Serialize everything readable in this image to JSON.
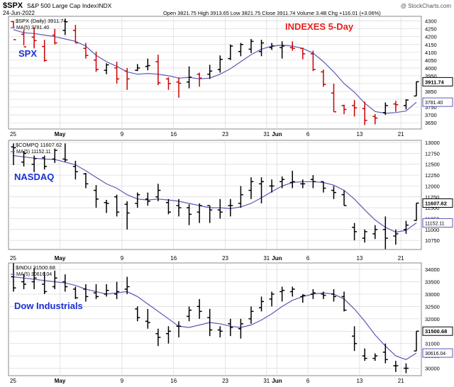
{
  "header": {
    "symbol": "$SPX",
    "name": "S&P 500 Large Cap Index",
    "exchange": "INDX",
    "date": "24-Jun-2022",
    "ohlc_text": "Open 3821.75  High 3913.65  Low 3821.75  Close 3911.74  Volume 3.4B  Chg +116.01 (+3.06%)",
    "watermark": "@ StockCharts.com"
  },
  "colors": {
    "up": "#000000",
    "down": "#cc0000",
    "ma": "#5a5ab8",
    "grid": "#d8d8d8",
    "accent_blue": "#1a2fd6",
    "accent_red": "#e8201b"
  },
  "x_labels": [
    {
      "i": -1,
      "t": "25"
    },
    {
      "i": 4,
      "t": "May",
      "bold": true
    },
    {
      "i": 10,
      "t": "9"
    },
    {
      "i": 15,
      "t": "16"
    },
    {
      "i": 20,
      "t": "23"
    },
    {
      "i": 24,
      "t": "31"
    },
    {
      "i": 25,
      "t": "Jun",
      "bold": true
    },
    {
      "i": 28,
      "t": "6"
    },
    {
      "i": 33,
      "t": "13"
    },
    {
      "i": 37,
      "t": "21"
    }
  ],
  "chart_data": [
    {
      "type": "ohlc",
      "symbol_line": "$SPX (Daily) 3911.74",
      "ma_label": "MA(5) 3781.40",
      "panel_label": "SPX",
      "annotation": "INDEXES 5-Day",
      "ylim": [
        3610,
        4330
      ],
      "yticks": [
        3650,
        3700,
        3750,
        3800,
        3850,
        3900,
        3950,
        4000,
        4050,
        4100,
        4150,
        4200,
        4250,
        4300
      ],
      "last_value": "3911.74",
      "ma_value": "3781.40",
      "last": 3911.74,
      "ma_last": 3781.4,
      "bars": [
        [
          4300,
          4255,
          4296,
          4181
        ],
        [
          4245,
          4145,
          4215,
          4135
        ],
        [
          4260,
          4125,
          4197,
          4175
        ],
        [
          4180,
          4040,
          4137,
          4048
        ],
        [
          4250,
          4150,
          4210,
          4160
        ],
        [
          4315,
          4210,
          4240,
          4295
        ],
        [
          4275,
          4160,
          4240,
          4160
        ],
        [
          4160,
          4060,
          4125,
          4080
        ],
        [
          4105,
          3975,
          4050,
          3990
        ],
        [
          4030,
          3960,
          3985,
          4020
        ],
        [
          4040,
          3900,
          4000,
          3930
        ],
        [
          4000,
          3860,
          3980,
          3930
        ],
        [
          4025,
          3980,
          3985,
          4000
        ],
        [
          4060,
          3985,
          4010,
          4015
        ],
        [
          4085,
          3890,
          4040,
          3905
        ],
        [
          3940,
          3860,
          3930,
          3900
        ],
        [
          3940,
          3810,
          3910,
          3902
        ],
        [
          4010,
          3870,
          3910,
          3941
        ],
        [
          3970,
          3880,
          3960,
          3935
        ],
        [
          4020,
          3930,
          3960,
          3980
        ],
        [
          4080,
          3970,
          3990,
          4055
        ],
        [
          4150,
          4050,
          4060,
          4140
        ],
        [
          4160,
          4075,
          4105,
          4150
        ],
        [
          4185,
          4095,
          4120,
          4170
        ],
        [
          4180,
          4075,
          4105,
          4160
        ],
        [
          4160,
          4115,
          4130,
          4140
        ],
        [
          4170,
          4060,
          4130,
          4140
        ],
        [
          4170,
          4110,
          4130,
          4125
        ],
        [
          4130,
          4055,
          4125,
          4090
        ],
        [
          4110,
          3980,
          4090,
          3990
        ],
        [
          3990,
          3880,
          3975,
          3895
        ],
        [
          3900,
          3720,
          3840,
          3720
        ],
        [
          3765,
          3705,
          3760,
          3735
        ],
        [
          3795,
          3690,
          3760,
          3745
        ],
        [
          3785,
          3635,
          3740,
          3665
        ],
        [
          3705,
          3640,
          3690,
          3680
        ],
        [
          3780,
          3700,
          3715,
          3760
        ],
        [
          3790,
          3720,
          3770,
          3765
        ],
        [
          3800,
          3735,
          3760,
          3795
        ],
        [
          3913,
          3821,
          3821,
          3912
        ]
      ],
      "ma": [
        4245,
        4225,
        4220,
        4210,
        4200,
        4185,
        4170,
        4140,
        4080,
        4040,
        4010,
        3975,
        3960,
        3965,
        3960,
        3950,
        3935,
        3940,
        3930,
        3935,
        3960,
        3995,
        4040,
        4085,
        4120,
        4140,
        4145,
        4140,
        4125,
        4095,
        4040,
        3975,
        3900,
        3845,
        3775,
        3722,
        3710,
        3715,
        3725,
        3781
      ]
    },
    {
      "type": "ohlc",
      "symbol_line": "$COMPQ 11607.62",
      "ma_label": "MA(5) 11152.11",
      "panel_label": "NASDAQ",
      "ylim": [
        10540,
        13050
      ],
      "yticks": [
        10750,
        11000,
        11250,
        11500,
        11750,
        12000,
        12250,
        12500,
        12750,
        13000
      ],
      "last_value": "11607.62",
      "ma_value": "11152.11",
      "last": 11607.62,
      "ma_last": 11152.11,
      "bars": [
        [
          12980,
          12480,
          12900,
          12880
        ],
        [
          12800,
          12450,
          12550,
          12750
        ],
        [
          12700,
          12320,
          12500,
          12630
        ],
        [
          12700,
          12380,
          12650,
          12450
        ],
        [
          12860,
          12530,
          12620,
          12820
        ],
        [
          12980,
          12550,
          12620,
          12600
        ],
        [
          12580,
          12150,
          12450,
          12330
        ],
        [
          12300,
          11950,
          12280,
          12050
        ],
        [
          12020,
          11500,
          11900,
          11700
        ],
        [
          11680,
          11380,
          11620,
          11600
        ],
        [
          11800,
          11300,
          11750,
          11400
        ],
        [
          11650,
          11000,
          11580,
          11380
        ],
        [
          11850,
          11500,
          11600,
          11800
        ],
        [
          11850,
          11550,
          11700,
          11650
        ],
        [
          12050,
          11650,
          11750,
          11900
        ],
        [
          11700,
          11350,
          11620,
          11400
        ],
        [
          11700,
          11300,
          11550,
          11500
        ],
        [
          11580,
          11100,
          11500,
          11350
        ],
        [
          11600,
          11150,
          11400,
          11550
        ],
        [
          11550,
          11150,
          11550,
          11450
        ],
        [
          11700,
          11250,
          11450,
          11400
        ],
        [
          11700,
          11300,
          11550,
          11550
        ],
        [
          12000,
          11500,
          11600,
          11800
        ],
        [
          12200,
          11700,
          11900,
          12100
        ],
        [
          12200,
          11600,
          12050,
          12100
        ],
        [
          12150,
          11850,
          12000,
          12000
        ],
        [
          12220,
          11950,
          12100,
          12150
        ],
        [
          12350,
          11950,
          12080,
          12100
        ],
        [
          12150,
          11950,
          12050,
          12050
        ],
        [
          12250,
          11950,
          12150,
          12100
        ],
        [
          12100,
          11850,
          12100,
          11950
        ],
        [
          12000,
          11700,
          11900,
          11850
        ],
        [
          11900,
          11550,
          11800,
          11550
        ],
        [
          11150,
          10750,
          11050,
          10950
        ],
        [
          11000,
          10700,
          10800,
          10950
        ],
        [
          11100,
          10780,
          10900,
          11000
        ],
        [
          11300,
          10550,
          11000,
          10800
        ],
        [
          11000,
          10650,
          10850,
          10900
        ],
        [
          11200,
          10900,
          11000,
          11100
        ],
        [
          11607,
          11200,
          11210,
          11607
        ]
      ],
      "ma": [
        12700,
        12670,
        12640,
        12620,
        12610,
        12550,
        12490,
        12350,
        12200,
        12050,
        11950,
        11800,
        11700,
        11680,
        11700,
        11680,
        11650,
        11600,
        11550,
        11500,
        11500,
        11480,
        11520,
        11600,
        11730,
        11870,
        12000,
        12080,
        12100,
        12100,
        12080,
        12020,
        11900,
        11700,
        11450,
        11220,
        11050,
        10940,
        10980,
        11152
      ]
    },
    {
      "type": "ohlc",
      "symbol_line": "$INDU 31500.68",
      "ma_label": "MA(5) 30616.04",
      "panel_label": "Dow Industrials",
      "ylim": [
        29700,
        34260
      ],
      "yticks": [
        30000,
        30500,
        31000,
        31500,
        32000,
        32500,
        33000,
        33500,
        34000
      ],
      "last_value": "31500.68",
      "ma_value": "30616.04",
      "last": 31500.68,
      "ma_last": 30616.04,
      "bars": [
        [
          34250,
          33100,
          33700,
          33250
        ],
        [
          33800,
          33200,
          33500,
          33400
        ],
        [
          34050,
          33200,
          33500,
          33650
        ],
        [
          33900,
          33000,
          33400,
          33100
        ],
        [
          33950,
          33200,
          33300,
          33650
        ],
        [
          33800,
          33100,
          33500,
          33300
        ],
        [
          33300,
          32800,
          33200,
          32850
        ],
        [
          33400,
          32700,
          33200,
          32900
        ],
        [
          33400,
          32800,
          33050,
          32900
        ],
        [
          33400,
          32900,
          33000,
          33150
        ],
        [
          33500,
          32800,
          33000,
          33100
        ],
        [
          33700,
          33000,
          33200,
          33300
        ],
        [
          32500,
          31900,
          32400,
          32050
        ],
        [
          32400,
          31600,
          31900,
          31850
        ],
        [
          31600,
          30900,
          31400,
          31250
        ],
        [
          31700,
          31000,
          31400,
          31500
        ],
        [
          31900,
          31250,
          31700,
          31700
        ],
        [
          32500,
          31900,
          32100,
          32350
        ],
        [
          32800,
          32000,
          32500,
          32300
        ],
        [
          32400,
          31300,
          32050,
          31550
        ],
        [
          31700,
          31250,
          31550,
          31500
        ],
        [
          32000,
          31300,
          31800,
          31650
        ],
        [
          32000,
          31200,
          31600,
          31800
        ],
        [
          32500,
          31800,
          32000,
          32300
        ],
        [
          32900,
          32300,
          32450,
          32700
        ],
        [
          33100,
          32500,
          32800,
          33000
        ],
        [
          33300,
          32700,
          33100,
          33150
        ],
        [
          33300,
          32900,
          33100,
          33200
        ],
        [
          33000,
          32650,
          32900,
          32950
        ],
        [
          33200,
          32800,
          33000,
          33050
        ],
        [
          33100,
          32800,
          33000,
          32950
        ],
        [
          33200,
          32700,
          33000,
          32900
        ],
        [
          33100,
          32300,
          32900,
          32350
        ],
        [
          31700,
          30700,
          31300,
          31000
        ],
        [
          30800,
          30300,
          30500,
          30400
        ],
        [
          30600,
          30300,
          30400,
          30500
        ],
        [
          31000,
          30200,
          30650,
          30350
        ],
        [
          30300,
          29850,
          30100,
          30100
        ],
        [
          30200,
          29800,
          30000,
          30000
        ],
        [
          31500,
          30700,
          30700,
          31500
        ]
      ],
      "ma": [
        33700,
        33650,
        33600,
        33550,
        33500,
        33450,
        33350,
        33200,
        33100,
        33000,
        33050,
        33100,
        32900,
        32600,
        32300,
        32000,
        31700,
        31650,
        31750,
        31850,
        31800,
        31700,
        31650,
        31750,
        31950,
        32200,
        32500,
        32750,
        32900,
        33000,
        33050,
        33000,
        32800,
        32400,
        31900,
        31350,
        30900,
        30500,
        30350,
        30616
      ]
    }
  ]
}
